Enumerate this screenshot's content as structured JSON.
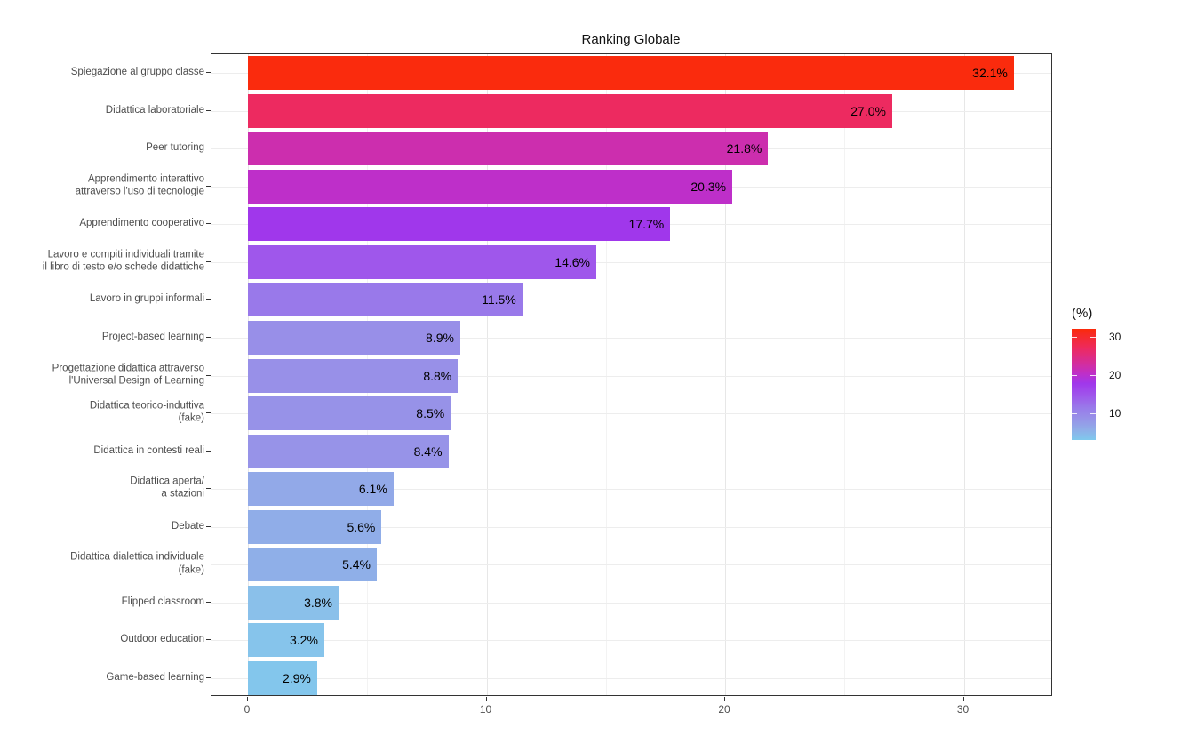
{
  "chart_data": {
    "type": "bar",
    "orientation": "horizontal",
    "title": "Ranking Globale",
    "xlabel": "",
    "ylabel": "",
    "x_ticks": [
      0,
      10,
      20,
      30
    ],
    "x_minor_ticks": [
      5,
      15,
      25
    ],
    "xlim": [
      -1.53,
      33.73
    ],
    "grid": true,
    "legend": {
      "title": "(%)",
      "position": "right",
      "ticks": [
        30,
        20,
        10
      ],
      "scale_max": 32.1,
      "scale_min": 2.9,
      "gradient_stops": [
        {
          "pos": 0,
          "color": "#FB2A0A"
        },
        {
          "pos": 17.5,
          "color": "#ED2A60"
        },
        {
          "pos": 35,
          "color": "#CC2EAE"
        },
        {
          "pos": 40.5,
          "color": "#BE2FC9"
        },
        {
          "pos": 49,
          "color": "#A037EB"
        },
        {
          "pos": 60,
          "color": "#9F57EB"
        },
        {
          "pos": 70.5,
          "color": "#9979EA"
        },
        {
          "pos": 80.5,
          "color": "#9791E8"
        },
        {
          "pos": 90.5,
          "color": "#90ADE8"
        },
        {
          "pos": 100,
          "color": "#7FC9ED"
        }
      ]
    },
    "bars": [
      {
        "label": "Spiegazione al gruppo classe",
        "label_lines": [
          "Spiegazione al gruppo classe"
        ],
        "value": 32.1,
        "value_label": "32.1%",
        "color": "#FA2B0D"
      },
      {
        "label": "Didattica laboratoriale",
        "label_lines": [
          "Didattica laboratoriale"
        ],
        "value": 27.0,
        "value_label": "27.0%",
        "color": "#ED2A60"
      },
      {
        "label": "Peer tutoring",
        "label_lines": [
          "Peer tutoring"
        ],
        "value": 21.8,
        "value_label": "21.8%",
        "color": "#CC2EAE"
      },
      {
        "label": "Apprendimento interattivo attraverso l'uso di tecnologie",
        "label_lines": [
          "Apprendimento interattivo",
          "attraverso l'uso di tecnologie"
        ],
        "value": 20.3,
        "value_label": "20.3%",
        "color": "#BE2FC9"
      },
      {
        "label": "Apprendimento cooperativo",
        "label_lines": [
          "Apprendimento cooperativo"
        ],
        "value": 17.7,
        "value_label": "17.7%",
        "color": "#A037EB"
      },
      {
        "label": "Lavoro e compiti individuali tramite il libro di testo e/o schede didattiche",
        "label_lines": [
          "Lavoro e compiti individuali tramite",
          "il libro di testo e/o schede didattiche"
        ],
        "value": 14.6,
        "value_label": "14.6%",
        "color": "#9F57EB"
      },
      {
        "label": "Lavoro in gruppi informali",
        "label_lines": [
          "Lavoro in gruppi informali"
        ],
        "value": 11.5,
        "value_label": "11.5%",
        "color": "#9979EA"
      },
      {
        "label": "Project-based learning",
        "label_lines": [
          "Project-based learning"
        ],
        "value": 8.9,
        "value_label": "8.9%",
        "color": "#988FE8"
      },
      {
        "label": "Progettazione didattica attraverso l'Universal Design of Learning",
        "label_lines": [
          "Progettazione didattica attraverso",
          "l'Universal Design of Learning"
        ],
        "value": 8.8,
        "value_label": "8.8%",
        "color": "#9890E8"
      },
      {
        "label": "Didattica teorico-induttiva (fake)",
        "label_lines": [
          "Didattica teorico-induttiva",
          "(fake)"
        ],
        "value": 8.5,
        "value_label": "8.5%",
        "color": "#9792E8"
      },
      {
        "label": "Didattica in contesti reali",
        "label_lines": [
          "Didattica in contesti reali"
        ],
        "value": 8.4,
        "value_label": "8.4%",
        "color": "#9793E8"
      },
      {
        "label": "Didattica aperta/ a stazioni",
        "label_lines": [
          "Didattica aperta/",
          "a stazioni"
        ],
        "value": 6.1,
        "value_label": "6.1%",
        "color": "#92A9E8"
      },
      {
        "label": "Debate",
        "label_lines": [
          "Debate"
        ],
        "value": 5.6,
        "value_label": "5.6%",
        "color": "#90ADE8"
      },
      {
        "label": "Didattica dialettica individuale (fake)",
        "label_lines": [
          "Didattica dialettica individuale",
          "(fake)"
        ],
        "value": 5.4,
        "value_label": "5.4%",
        "color": "#8FAFE8"
      },
      {
        "label": "Flipped classroom",
        "label_lines": [
          "Flipped classroom"
        ],
        "value": 3.8,
        "value_label": "3.8%",
        "color": "#8AC0EA"
      },
      {
        "label": "Outdoor education",
        "label_lines": [
          "Outdoor education"
        ],
        "value": 3.2,
        "value_label": "3.2%",
        "color": "#86C4EB"
      },
      {
        "label": "Game-based learning",
        "label_lines": [
          "Game-based learning"
        ],
        "value": 2.9,
        "value_label": "2.9%",
        "color": "#83C6EC"
      }
    ]
  }
}
